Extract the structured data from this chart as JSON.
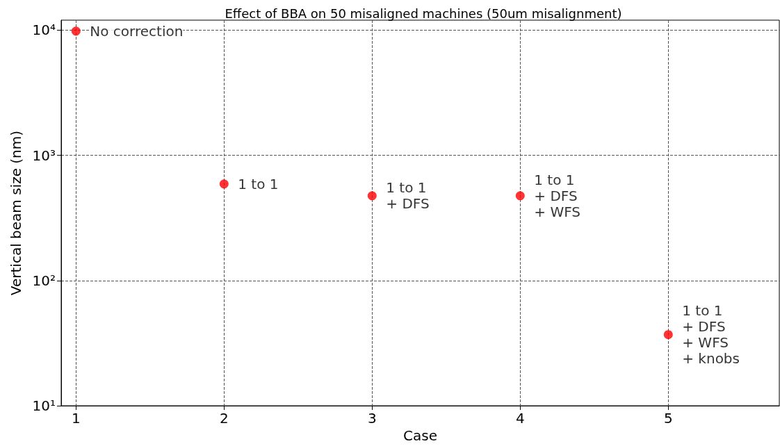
{
  "chart_data": {
    "type": "scatter",
    "title": "Effect of BBA on 50 misaligned machines (50um misalignment)",
    "xlabel": "Case",
    "ylabel": "Vertical beam size (nm)",
    "x": [
      1,
      2,
      3,
      4,
      5
    ],
    "values": [
      9800,
      590,
      475,
      475,
      37
    ],
    "color": "#ff0000",
    "marker": "circle",
    "log": "y",
    "grid": true,
    "legend": false,
    "xlim": [
      0.9,
      5.75
    ],
    "xticks": [
      1,
      2,
      3,
      4,
      5
    ],
    "ylim": [
      10,
      12000
    ],
    "yticks": [
      {
        "value": 10,
        "label": "10¹"
      },
      {
        "value": 100,
        "label": "10²"
      },
      {
        "value": 1000,
        "label": "10³"
      },
      {
        "value": 10000,
        "label": "10⁴"
      }
    ],
    "annotations": [
      {
        "text": "No correction",
        "x": 1,
        "y": 9800
      },
      {
        "text": "1 to 1",
        "x": 2,
        "y": 590
      },
      {
        "text": "1 to 1\n+ DFS",
        "x": 3,
        "y": 475
      },
      {
        "text": "1 to 1\n+ DFS\n+ WFS",
        "x": 4,
        "y": 475
      },
      {
        "text": "1 to 1\n+ DFS\n+ WFS\n+ knobs",
        "x": 5,
        "y": 37
      }
    ]
  }
}
